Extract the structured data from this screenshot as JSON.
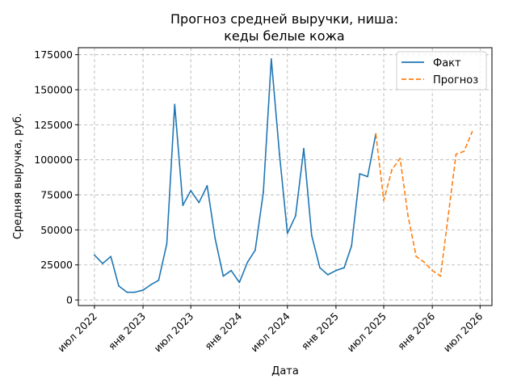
{
  "chart_data": {
    "type": "line",
    "title_lines": [
      "Прогноз средней выручки, ниша:",
      "кеды белые кожа"
    ],
    "xlabel": "Дата",
    "ylabel": "Средняя выручка, руб.",
    "ylim": [
      -4000,
      180000
    ],
    "xlim": [
      "2022-05-01",
      "2026-08-15"
    ],
    "grid": true,
    "legend_position": "top-right",
    "x_ticks": [
      {
        "date": "2022-07-01",
        "label": "июл 2022"
      },
      {
        "date": "2023-01-01",
        "label": "янв 2023"
      },
      {
        "date": "2023-07-01",
        "label": "июл 2023"
      },
      {
        "date": "2024-01-01",
        "label": "янв 2024"
      },
      {
        "date": "2024-07-01",
        "label": "июл 2024"
      },
      {
        "date": "2025-01-01",
        "label": "янв 2025"
      },
      {
        "date": "2025-07-01",
        "label": "июл 2025"
      },
      {
        "date": "2026-01-01",
        "label": "янв 2026"
      },
      {
        "date": "2026-07-01",
        "label": "июл 2026"
      }
    ],
    "y_ticks": [
      {
        "value": 0,
        "label": "0"
      },
      {
        "value": 25000,
        "label": "25000"
      },
      {
        "value": 50000,
        "label": "50000"
      },
      {
        "value": 75000,
        "label": "75000"
      },
      {
        "value": 100000,
        "label": "100000"
      },
      {
        "value": 125000,
        "label": "125000"
      },
      {
        "value": 150000,
        "label": "150000"
      },
      {
        "value": 175000,
        "label": "175000"
      }
    ],
    "series": [
      {
        "name": "Факт",
        "color": "#1f77b4",
        "style": "solid",
        "points": [
          [
            "2022-07-01",
            32000
          ],
          [
            "2022-08-01",
            26000
          ],
          [
            "2022-09-01",
            31000
          ],
          [
            "2022-10-01",
            10000
          ],
          [
            "2022-11-01",
            5500
          ],
          [
            "2022-12-01",
            5500
          ],
          [
            "2023-01-01",
            7000
          ],
          [
            "2023-02-01",
            11000
          ],
          [
            "2023-03-01",
            14000
          ],
          [
            "2023-04-01",
            40000
          ],
          [
            "2023-05-01",
            139500
          ],
          [
            "2023-06-01",
            67500
          ],
          [
            "2023-07-01",
            78000
          ],
          [
            "2023-08-01",
            69500
          ],
          [
            "2023-09-01",
            81500
          ],
          [
            "2023-10-01",
            44000
          ],
          [
            "2023-11-01",
            17000
          ],
          [
            "2023-12-01",
            21000
          ],
          [
            "2024-01-01",
            12500
          ],
          [
            "2024-02-01",
            27000
          ],
          [
            "2024-03-01",
            35500
          ],
          [
            "2024-04-01",
            77000
          ],
          [
            "2024-05-01",
            172000
          ],
          [
            "2024-06-01",
            104000
          ],
          [
            "2024-07-01",
            47500
          ],
          [
            "2024-08-01",
            60000
          ],
          [
            "2024-09-01",
            108000
          ],
          [
            "2024-10-01",
            46000
          ],
          [
            "2024-11-01",
            23000
          ],
          [
            "2024-12-01",
            18000
          ],
          [
            "2025-01-01",
            21000
          ],
          [
            "2025-02-01",
            23000
          ],
          [
            "2025-03-01",
            38500
          ],
          [
            "2025-04-01",
            90000
          ],
          [
            "2025-05-01",
            88000
          ],
          [
            "2025-06-01",
            118500
          ]
        ]
      },
      {
        "name": "Прогноз",
        "color": "#ff7f0e",
        "style": "dashed",
        "points": [
          [
            "2025-06-01",
            118500
          ],
          [
            "2025-07-01",
            71000
          ],
          [
            "2025-08-01",
            93000
          ],
          [
            "2025-09-01",
            101000
          ],
          [
            "2025-10-01",
            60000
          ],
          [
            "2025-11-01",
            31000
          ],
          [
            "2025-12-01",
            27000
          ],
          [
            "2026-01-01",
            21000
          ],
          [
            "2026-02-01",
            17000
          ],
          [
            "2026-03-01",
            58000
          ],
          [
            "2026-04-01",
            104000
          ],
          [
            "2026-05-01",
            106000
          ],
          [
            "2026-06-01",
            120000
          ]
        ]
      }
    ]
  }
}
